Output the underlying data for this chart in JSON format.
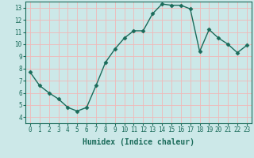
{
  "x": [
    0,
    1,
    2,
    3,
    4,
    5,
    6,
    7,
    8,
    9,
    10,
    11,
    12,
    13,
    14,
    15,
    16,
    17,
    18,
    19,
    20,
    21,
    22,
    23
  ],
  "y": [
    7.7,
    6.6,
    6.0,
    5.5,
    4.8,
    4.5,
    4.8,
    6.6,
    8.5,
    9.6,
    10.5,
    11.1,
    11.1,
    12.5,
    13.3,
    13.2,
    13.2,
    12.9,
    9.4,
    11.2,
    10.5,
    10.0,
    9.3,
    9.9
  ],
  "line_color": "#1a6b5a",
  "marker": "D",
  "marker_size": 2.5,
  "bg_color": "#cce8e8",
  "grid_color": "#f0b8b8",
  "xlabel": "Humidex (Indice chaleur)",
  "xlim": [
    -0.5,
    23.5
  ],
  "ylim": [
    3.5,
    13.5
  ],
  "yticks": [
    4,
    5,
    6,
    7,
    8,
    9,
    10,
    11,
    12,
    13
  ],
  "xticks": [
    0,
    1,
    2,
    3,
    4,
    5,
    6,
    7,
    8,
    9,
    10,
    11,
    12,
    13,
    14,
    15,
    16,
    17,
    18,
    19,
    20,
    21,
    22,
    23
  ],
  "tick_fontsize": 5.5,
  "label_fontsize": 7.0,
  "linewidth": 1.0
}
